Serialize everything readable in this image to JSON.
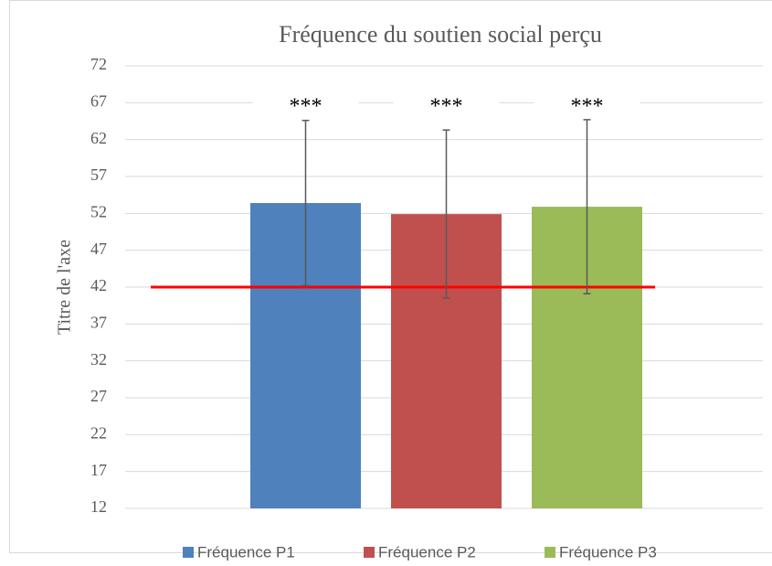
{
  "chart_data": {
    "type": "bar",
    "title": "Fréquence du soutien social perçu",
    "y_label": "Titre de l'axe",
    "series": [
      {
        "name": "Fréquence P1",
        "color": "#4f81bd",
        "values": [
          53.4
        ],
        "errors": [
          11.2
        ]
      },
      {
        "name": "Fréquence P2",
        "color": "#c0504d",
        "values": [
          51.9
        ],
        "errors": [
          11.4
        ]
      },
      {
        "name": "Fréquence P3",
        "color": "#9bbb59",
        "values": [
          52.9
        ],
        "errors": [
          11.8
        ]
      }
    ],
    "annotations": [
      "***",
      "***",
      "***"
    ],
    "reference_line": {
      "value": 42,
      "color": "#ff0000"
    },
    "ylim": [
      12,
      72
    ],
    "yticks": [
      12,
      17,
      22,
      27,
      32,
      37,
      42,
      47,
      52,
      57,
      62,
      67,
      72
    ],
    "grid": true,
    "legend": "bottom"
  }
}
